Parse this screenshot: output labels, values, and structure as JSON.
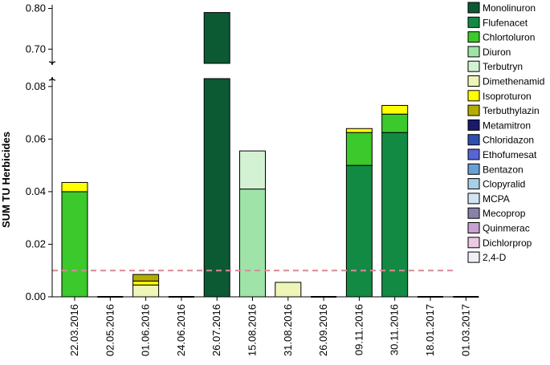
{
  "chart_data": {
    "type": "bar",
    "stacked": true,
    "ylabel": "SUM TU Herbicides",
    "xlabel": "",
    "y_lower_ticks": [
      "0.00",
      "0.02",
      "0.04",
      "0.06",
      "0.08"
    ],
    "y_upper_ticks": [
      "0.70",
      "0.80"
    ],
    "ylim_lower": [
      0,
      0.083
    ],
    "ylim_upper": [
      0.665,
      0.805
    ],
    "axis_break": true,
    "threshold": {
      "value": 0.01,
      "style": "dashed",
      "color": "#d98a96"
    },
    "legend_position": "right",
    "categories": [
      "22.03.2016",
      "02.05.2016",
      "01.06.2016",
      "24.06.2016",
      "26.07.2016",
      "15.08.2016",
      "31.08.2016",
      "26.09.2016",
      "09.11.2016",
      "30.11.2016",
      "18.01.2017",
      "01.03.2017"
    ],
    "series": [
      {
        "name": "Monolinuron",
        "color": "#0b5a33",
        "values": [
          0,
          0,
          0,
          0,
          0.79,
          0,
          0,
          0,
          0,
          0,
          0,
          0
        ]
      },
      {
        "name": "Flufenacet",
        "color": "#138a43",
        "values": [
          0,
          0,
          0,
          0,
          0,
          0,
          0,
          0,
          0.05,
          0.0625,
          0,
          0
        ]
      },
      {
        "name": "Chlortoluron",
        "color": "#3bc92c",
        "values": [
          0.04,
          0,
          0,
          0,
          0,
          0,
          0,
          0,
          0.0125,
          0.007,
          0,
          0
        ]
      },
      {
        "name": "Diuron",
        "color": "#9fe3a9",
        "values": [
          0,
          0,
          0,
          0,
          0,
          0.041,
          0,
          0,
          0,
          0,
          0,
          0
        ]
      },
      {
        "name": "Terbutryn",
        "color": "#d3f2d3",
        "values": [
          0,
          0,
          0,
          0,
          0,
          0.0145,
          0,
          0,
          0,
          0,
          0,
          0
        ]
      },
      {
        "name": "Dimethenamid",
        "color": "#eef5b7",
        "values": [
          0,
          0,
          0.0045,
          0,
          0,
          0,
          0.0055,
          0,
          0,
          0,
          0,
          0
        ]
      },
      {
        "name": "Isoproturon",
        "color": "#ffff00",
        "values": [
          0.0035,
          0,
          0.0015,
          0,
          0,
          0,
          0,
          0,
          0.0015,
          0.0033,
          0,
          0
        ]
      },
      {
        "name": "Terbuthylazin",
        "color": "#b5ac00",
        "values": [
          0,
          0,
          0.0025,
          0,
          0,
          0,
          0,
          0,
          0,
          0,
          0,
          0
        ]
      },
      {
        "name": "Metamitron",
        "color": "#1a1a6e",
        "values": [
          0,
          0,
          0,
          0,
          0,
          0,
          0,
          0,
          0,
          0,
          0,
          0
        ]
      },
      {
        "name": "Chloridazon",
        "color": "#2e4fae",
        "values": [
          0,
          0,
          0,
          0,
          0,
          0,
          0,
          0,
          0,
          0,
          0,
          0
        ]
      },
      {
        "name": "Ethofumesat",
        "color": "#5765d4",
        "values": [
          0,
          0,
          0,
          0,
          0,
          0,
          0,
          0,
          0,
          0,
          0,
          0
        ]
      },
      {
        "name": "Bentazon",
        "color": "#6aa0d8",
        "values": [
          0,
          0,
          0,
          0,
          0,
          0,
          0,
          0,
          0,
          0,
          0,
          0
        ]
      },
      {
        "name": "Clopyralid",
        "color": "#a8cfe6",
        "values": [
          0,
          0,
          0,
          0,
          0,
          0,
          0,
          0,
          0,
          0,
          0,
          0
        ]
      },
      {
        "name": "MCPA",
        "color": "#d4e4f2",
        "values": [
          0,
          0,
          0,
          0,
          0,
          0,
          0,
          0,
          0,
          0,
          0,
          0
        ]
      },
      {
        "name": "Mecoprop",
        "color": "#8882aa",
        "values": [
          0,
          0,
          0,
          0,
          0,
          0,
          0,
          0,
          0,
          0,
          0,
          0
        ]
      },
      {
        "name": "Quinmerac",
        "color": "#c6a3d2",
        "values": [
          0,
          0,
          0,
          0,
          0,
          0,
          0,
          0,
          0,
          0,
          0,
          0
        ]
      },
      {
        "name": "Dichlorprop",
        "color": "#ecc9e2",
        "values": [
          0,
          0,
          0,
          0,
          0,
          0,
          0,
          0,
          0,
          0,
          0,
          0
        ]
      },
      {
        "name": "2,4-D",
        "color": "#f2eef7",
        "values": [
          0,
          0,
          0,
          0,
          0,
          0,
          0,
          0,
          0,
          0,
          0,
          0
        ]
      }
    ]
  }
}
